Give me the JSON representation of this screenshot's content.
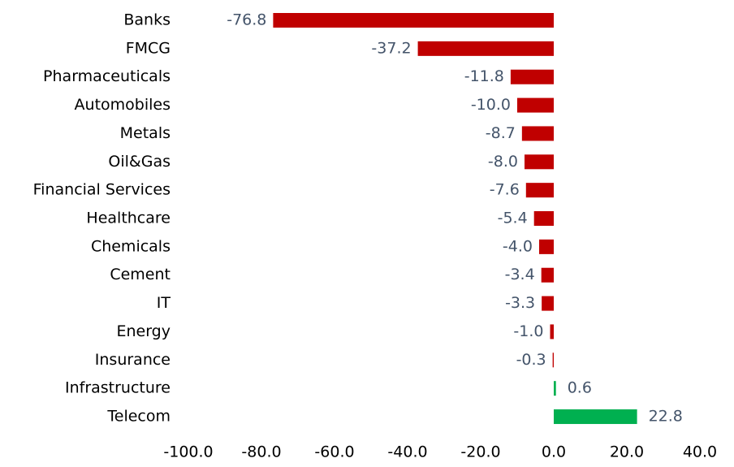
{
  "chart_data": {
    "type": "hbar",
    "categories": [
      "Banks",
      "FMCG",
      "Pharmaceuticals",
      "Automobiles",
      "Metals",
      "Oil&Gas",
      "Financial Services",
      "Healthcare",
      "Chemicals",
      "Cement",
      "IT",
      "Energy",
      "Insurance",
      "Infrastructure",
      "Telecom"
    ],
    "values": [
      -76.8,
      -37.2,
      -11.8,
      -10.0,
      -8.7,
      -8.0,
      -7.6,
      -5.4,
      -4.0,
      -3.4,
      -3.3,
      -1.0,
      -0.3,
      0.6,
      22.8
    ],
    "value_labels": [
      "-76.8",
      "-37.2",
      "-11.8",
      "-10.0",
      "-8.7",
      "-8.0",
      "-7.6",
      "-5.4",
      "-4.0",
      "-3.4",
      "-3.3",
      "-1.0",
      "-0.3",
      "0.6",
      "22.8"
    ],
    "colors": [
      "#c00000",
      "#c00000",
      "#c00000",
      "#c00000",
      "#c00000",
      "#c00000",
      "#c00000",
      "#c00000",
      "#c00000",
      "#c00000",
      "#c00000",
      "#c00000",
      "#c00000",
      "#00b050",
      "#00b050"
    ],
    "xlim": [
      -100,
      40
    ],
    "xticks": [
      {
        "value": -100,
        "label": "-100.0"
      },
      {
        "value": -80,
        "label": "-80.0"
      },
      {
        "value": -60,
        "label": "-60.0"
      },
      {
        "value": -40,
        "label": "-40.0"
      },
      {
        "value": -20,
        "label": "-20.0"
      },
      {
        "value": 0,
        "label": "0.0"
      },
      {
        "value": 20,
        "label": "20.0"
      },
      {
        "value": 40,
        "label": "40.0"
      }
    ],
    "grid": false
  }
}
